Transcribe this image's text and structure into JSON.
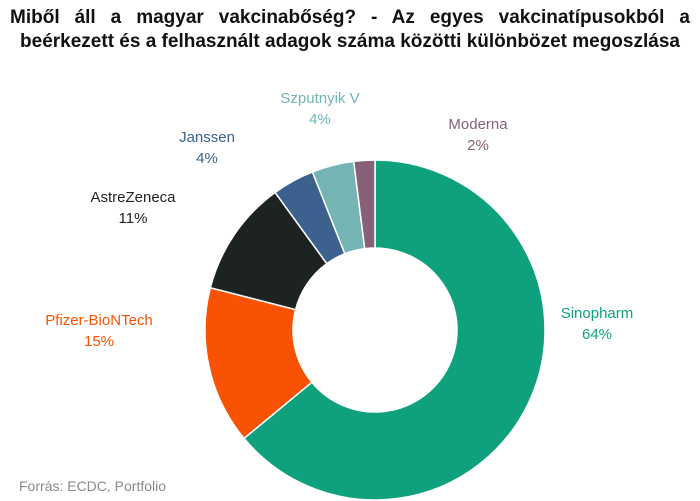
{
  "title": "Miből áll a magyar vakcinabőség? - Az egyes vakcinatípusokból a beérkezett és a felhasznált adagok száma közötti különbözet megoszlása",
  "source": "Forrás: ECDC, Portfolio",
  "chart_data": {
    "type": "pie",
    "subtype": "donut",
    "title": "Miből áll a magyar vakcinabőség? - Az egyes vakcinatípusokból a beérkezett és a felhasznált adagok száma közötti különbözet megoszlása",
    "slices": [
      {
        "name": "Sinopharm",
        "value": 64,
        "label": "64%",
        "color": "#0fa07e"
      },
      {
        "name": "Pfizer-BioNTech",
        "value": 15,
        "label": "15%",
        "color": "#fa5203"
      },
      {
        "name": "AstreZeneca",
        "value": 11,
        "label": "11%",
        "color": "#1c2322"
      },
      {
        "name": "Janssen",
        "value": 4,
        "label": "4%",
        "color": "#3d618e"
      },
      {
        "name": "Szputnyik V",
        "value": 4,
        "label": "4%",
        "color": "#74b4b4"
      },
      {
        "name": "Moderna",
        "value": 2,
        "label": "2%",
        "color": "#876178"
      }
    ],
    "label_colors": {
      "Sinopharm": "#0fa07e",
      "Pfizer-BioNTech": "#fa5203",
      "AstreZeneca": "#1c2322",
      "Janssen": "#3d618e",
      "Szputnyik V": "#74b4b4",
      "Moderna": "#876178"
    }
  }
}
